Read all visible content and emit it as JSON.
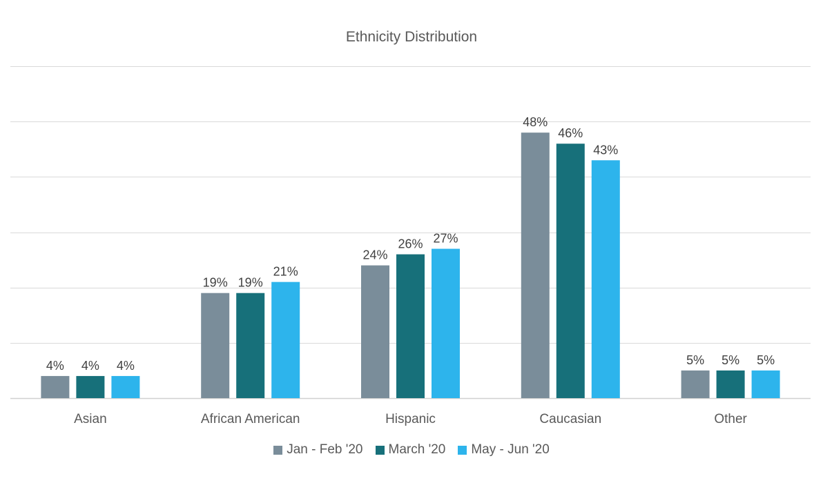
{
  "chart_data": {
    "type": "bar",
    "title": "Ethnicity Distribution",
    "categories": [
      "Asian",
      "African American",
      "Hispanic",
      "Caucasian",
      "Other"
    ],
    "series": [
      {
        "name": "Jan - Feb '20",
        "color": "#7a8d9a",
        "values": [
          4,
          19,
          24,
          48,
          5
        ],
        "labels": [
          "4%",
          "19%",
          "24%",
          "48%",
          "5%"
        ]
      },
      {
        "name": "March '20",
        "color": "#17707a",
        "values": [
          4,
          19,
          26,
          46,
          5
        ],
        "labels": [
          "4%",
          "19%",
          "26%",
          "46%",
          "5%"
        ]
      },
      {
        "name": "May - Jun '20",
        "color": "#2db4ec",
        "values": [
          4,
          21,
          27,
          43,
          5
        ],
        "labels": [
          "4%",
          "21%",
          "27%",
          "43%",
          "5%"
        ]
      }
    ],
    "ylim": [
      0,
      60
    ],
    "y_gridlines": [
      0,
      10,
      20,
      30,
      40,
      50,
      60
    ],
    "y_axis_labels_visible": false,
    "grid": true,
    "legend_position": "bottom"
  }
}
